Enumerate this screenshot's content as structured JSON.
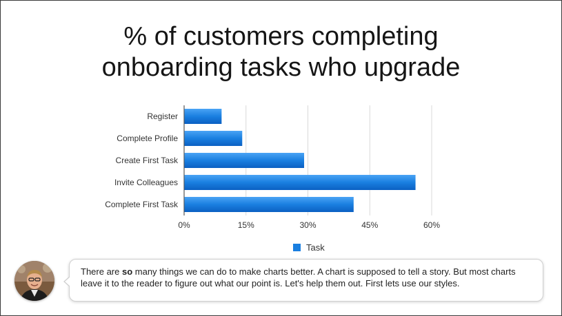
{
  "slide": {
    "title_line1": "% of customers completing",
    "title_line2": "onboarding tasks who upgrade"
  },
  "chart_data": {
    "type": "bar",
    "orientation": "horizontal",
    "title": "% of customers completing onboarding tasks who upgrade",
    "categories": [
      "Register",
      "Complete Profile",
      "Create First Task",
      "Invite Colleagues",
      "Complete First Task"
    ],
    "series": [
      {
        "name": "Task",
        "values": [
          9,
          14,
          29,
          56,
          41
        ],
        "color": "#1a7fe0"
      }
    ],
    "xlim": [
      0,
      60
    ],
    "xticks": [
      0,
      15,
      30,
      45,
      60
    ],
    "xtick_labels": [
      "0%",
      "15%",
      "30%",
      "45%",
      "60%"
    ],
    "grid": true,
    "legend": "bottom"
  },
  "speaker": {
    "avatar_icon": "person-avatar-icon",
    "note_before": "There are ",
    "note_bold": "so",
    "note_after": " many things we can do to make charts better. A chart is supposed to tell a story. But most charts leave it to the reader to figure out what our point is. Let's help them out. First lets use our styles."
  }
}
